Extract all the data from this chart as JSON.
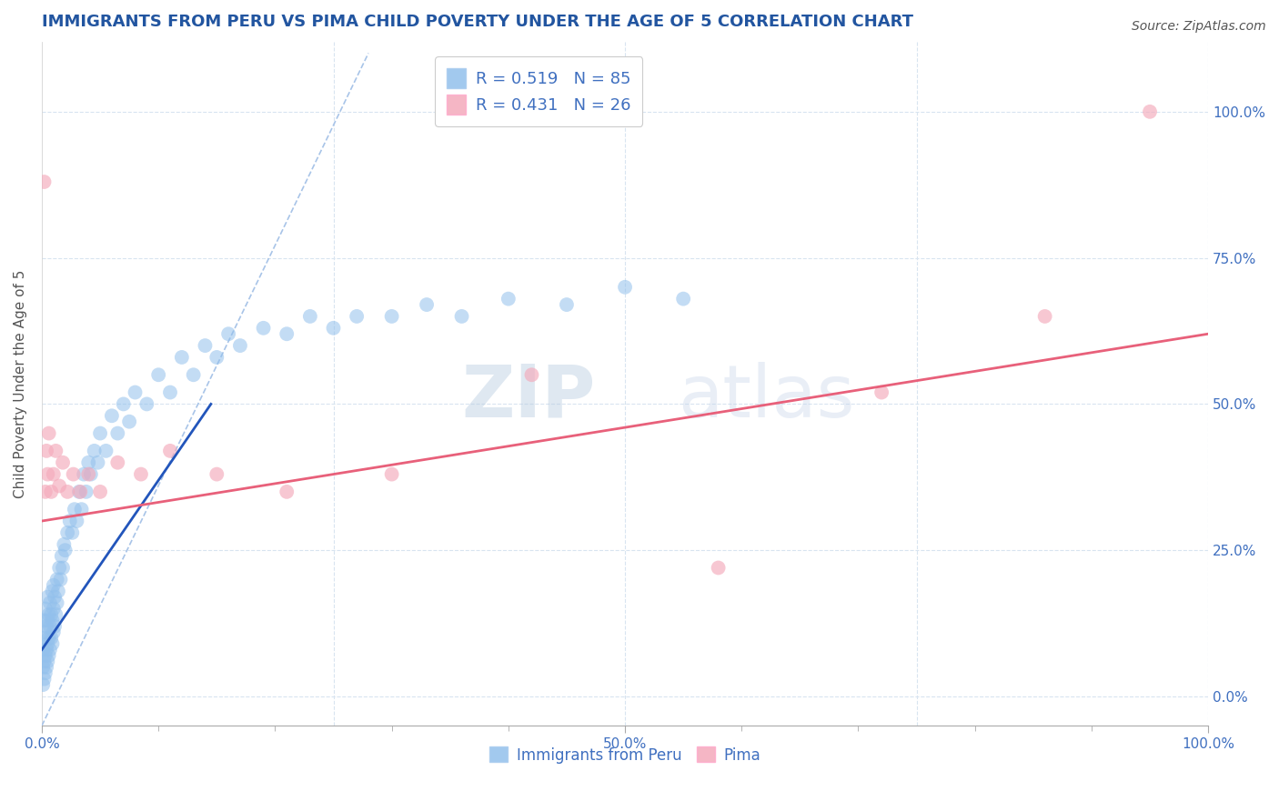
{
  "title": "IMMIGRANTS FROM PERU VS PIMA CHILD POVERTY UNDER THE AGE OF 5 CORRELATION CHART",
  "source": "Source: ZipAtlas.com",
  "ylabel": "Child Poverty Under the Age of 5",
  "xlim": [
    0.0,
    1.0
  ],
  "ylim": [
    -0.05,
    1.12
  ],
  "x_ticks": [
    0.0,
    0.1,
    0.2,
    0.3,
    0.4,
    0.5,
    0.6,
    0.7,
    0.8,
    0.9,
    1.0
  ],
  "x_tick_labels_major": [
    "0.0%",
    "",
    "",
    "",
    "",
    "50.0%",
    "",
    "",
    "",
    "",
    "100.0%"
  ],
  "x_minor_ticks": [
    0.05,
    0.15,
    0.25,
    0.35,
    0.45,
    0.55,
    0.65,
    0.75,
    0.85,
    0.95
  ],
  "y_ticks": [
    0.0,
    0.25,
    0.5,
    0.75,
    1.0
  ],
  "y_tick_labels_right": [
    "0.0%",
    "25.0%",
    "50.0%",
    "75.0%",
    "100.0%"
  ],
  "watermark_zip": "ZIP",
  "watermark_atlas": "atlas",
  "legend_R1": "R = 0.519",
  "legend_N1": "N = 85",
  "legend_R2": "R = 0.431",
  "legend_N2": "N = 26",
  "blue_color": "#92C0EC",
  "pink_color": "#F4AABB",
  "trendline_blue": "#2255BB",
  "trendline_pink": "#E8607A",
  "dashed_line_color": "#A8C4E8",
  "grid_color": "#D8E4F0",
  "title_color": "#2255A0",
  "tick_color": "#4070C0",
  "source_color": "#555555",
  "ylabel_color": "#555555",
  "blue_scatter_x": [
    0.001,
    0.001,
    0.001,
    0.002,
    0.002,
    0.002,
    0.002,
    0.003,
    0.003,
    0.003,
    0.003,
    0.004,
    0.004,
    0.004,
    0.005,
    0.005,
    0.005,
    0.005,
    0.006,
    0.006,
    0.006,
    0.007,
    0.007,
    0.007,
    0.008,
    0.008,
    0.009,
    0.009,
    0.009,
    0.01,
    0.01,
    0.01,
    0.011,
    0.011,
    0.012,
    0.013,
    0.013,
    0.014,
    0.015,
    0.016,
    0.017,
    0.018,
    0.019,
    0.02,
    0.022,
    0.024,
    0.026,
    0.028,
    0.03,
    0.032,
    0.034,
    0.036,
    0.038,
    0.04,
    0.042,
    0.045,
    0.048,
    0.05,
    0.055,
    0.06,
    0.065,
    0.07,
    0.075,
    0.08,
    0.09,
    0.1,
    0.11,
    0.12,
    0.13,
    0.14,
    0.15,
    0.16,
    0.17,
    0.19,
    0.21,
    0.23,
    0.25,
    0.27,
    0.3,
    0.33,
    0.36,
    0.4,
    0.45,
    0.5,
    0.55
  ],
  "blue_scatter_y": [
    0.02,
    0.05,
    0.08,
    0.03,
    0.06,
    0.1,
    0.13,
    0.04,
    0.07,
    0.11,
    0.15,
    0.05,
    0.08,
    0.12,
    0.06,
    0.09,
    0.13,
    0.17,
    0.07,
    0.1,
    0.14,
    0.08,
    0.12,
    0.16,
    0.1,
    0.14,
    0.09,
    0.13,
    0.18,
    0.11,
    0.15,
    0.19,
    0.12,
    0.17,
    0.14,
    0.16,
    0.2,
    0.18,
    0.22,
    0.2,
    0.24,
    0.22,
    0.26,
    0.25,
    0.28,
    0.3,
    0.28,
    0.32,
    0.3,
    0.35,
    0.32,
    0.38,
    0.35,
    0.4,
    0.38,
    0.42,
    0.4,
    0.45,
    0.42,
    0.48,
    0.45,
    0.5,
    0.47,
    0.52,
    0.5,
    0.55,
    0.52,
    0.58,
    0.55,
    0.6,
    0.58,
    0.62,
    0.6,
    0.63,
    0.62,
    0.65,
    0.63,
    0.65,
    0.65,
    0.67,
    0.65,
    0.68,
    0.67,
    0.7,
    0.68
  ],
  "pink_scatter_x": [
    0.002,
    0.003,
    0.004,
    0.005,
    0.006,
    0.008,
    0.01,
    0.012,
    0.015,
    0.018,
    0.022,
    0.027,
    0.033,
    0.04,
    0.05,
    0.065,
    0.085,
    0.11,
    0.15,
    0.21,
    0.3,
    0.42,
    0.58,
    0.72,
    0.86,
    0.95
  ],
  "pink_scatter_y": [
    0.88,
    0.35,
    0.42,
    0.38,
    0.45,
    0.35,
    0.38,
    0.42,
    0.36,
    0.4,
    0.35,
    0.38,
    0.35,
    0.38,
    0.35,
    0.4,
    0.38,
    0.42,
    0.38,
    0.35,
    0.38,
    0.55,
    0.22,
    0.52,
    0.65,
    1.0
  ],
  "blue_trend_x": [
    0.0,
    0.145
  ],
  "blue_trend_y": [
    0.08,
    0.5
  ],
  "pink_trend_x": [
    0.0,
    1.0
  ],
  "pink_trend_y": [
    0.3,
    0.62
  ],
  "dashed_trend_x": [
    0.0,
    0.28
  ],
  "dashed_trend_y": [
    -0.05,
    1.1
  ]
}
